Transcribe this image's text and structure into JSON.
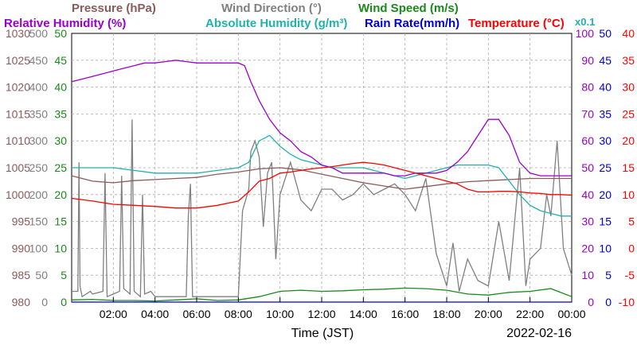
{
  "chart_data": {
    "type": "line",
    "date": "2022-02-16",
    "xlabel": "Time (JST)",
    "x_ticks": [
      "02:00",
      "04:00",
      "06:00",
      "08:00",
      "10:00",
      "12:00",
      "14:00",
      "16:00",
      "18:00",
      "20:00",
      "22:00",
      "00:00"
    ],
    "x_range_hours": [
      0,
      24
    ],
    "grid": true,
    "header_row1": [
      {
        "text": "Pressure (hPa)",
        "color": "#8b5a5a"
      },
      {
        "text": "Wind Direction (°)",
        "color": "#808080"
      },
      {
        "text": "Wind Speed (m/s)",
        "color": "#1a8a1a"
      }
    ],
    "header_row2": [
      {
        "text": "Relative Humidity (%)",
        "color": "#9900cc"
      },
      {
        "text": "Absolute Humidity (g/m³)",
        "color": "#20b2aa"
      },
      {
        "text": "Rain Rate(mm/h)",
        "color": "#0000cc"
      },
      {
        "text": "Temperature (°C)",
        "color": "#ff0000"
      }
    ],
    "scale_note": {
      "text": "x0.1",
      "color": "#20b2aa"
    },
    "axes": {
      "pressure": {
        "label": "Pressure (hPa)",
        "range": [
          980,
          1030
        ],
        "ticks": [
          "1030",
          "1025",
          "1020",
          "1015",
          "1010",
          "1005",
          "1000",
          "995",
          "990",
          "985",
          "980"
        ],
        "color": "#8b5a5a"
      },
      "wind_direction": {
        "label": "Wind Direction (°)",
        "range": [
          0,
          500
        ],
        "ticks": [
          "500",
          "450",
          "400",
          "350",
          "300",
          "250",
          "200",
          "150",
          "100",
          "50",
          "0"
        ],
        "color": "#808080"
      },
      "wind_speed": {
        "label": "Wind Speed (m/s)",
        "range": [
          0,
          50
        ],
        "ticks": [
          "50",
          "45",
          "40",
          "35",
          "30",
          "25",
          "20",
          "15",
          "10",
          "5",
          "0"
        ],
        "color": "#1a8a1a"
      },
      "humidity": {
        "label": "Relative Humidity (%)",
        "range": [
          0,
          100
        ],
        "ticks": [
          "100",
          "90",
          "80",
          "70",
          "60",
          "50",
          "40",
          "30",
          "20",
          "10",
          "0"
        ],
        "color": "#9900cc"
      },
      "rain_rate": {
        "label": "Rain Rate(mm/h)",
        "range": [
          0,
          50
        ],
        "ticks": [
          "50",
          "45",
          "40",
          "35",
          "30",
          "25",
          "20",
          "15",
          "10",
          "5",
          "0"
        ],
        "color": "#0000cc"
      },
      "temperature": {
        "label": "Temperature (°C)",
        "range": [
          -10,
          40
        ],
        "ticks": [
          "40",
          "35",
          "30",
          "25",
          "20",
          "15",
          "10",
          "5",
          "0",
          "-5",
          "-10"
        ],
        "color": "#ff0000"
      }
    },
    "series": [
      {
        "name": "Pressure (hPa)",
        "axis": "pressure",
        "color": "#8b5a5a",
        "x": [
          0,
          1,
          2,
          3,
          4,
          5,
          6,
          7,
          8,
          9,
          10,
          11,
          12,
          13,
          14,
          15,
          16,
          17,
          18,
          19,
          20,
          21,
          22,
          23,
          24
        ],
        "y": [
          1003.5,
          1002.5,
          1002.2,
          1002.6,
          1002.8,
          1003.0,
          1003.2,
          1003.8,
          1004.2,
          1004.8,
          1005.0,
          1004.6,
          1003.8,
          1003.0,
          1002.2,
          1001.6,
          1001.0,
          1001.5,
          1002.0,
          1002.4,
          1002.6,
          1002.8,
          1003.0,
          1003.0,
          1003.0
        ]
      },
      {
        "name": "Wind Direction (°)",
        "axis": "wind_direction",
        "color": "#808080",
        "x": [
          0,
          0.3,
          0.35,
          0.4,
          0.5,
          0.9,
          1.0,
          1.5,
          1.6,
          1.7,
          2.0,
          2.3,
          2.4,
          2.5,
          2.8,
          2.9,
          3.0,
          3.3,
          3.4,
          3.5,
          3.8,
          4.0,
          5.0,
          5.5,
          5.6,
          5.7,
          5.8,
          6.0,
          7.0,
          8.0,
          8.2,
          8.5,
          8.6,
          8.8,
          9.0,
          9.2,
          9.4,
          9.6,
          9.8,
          10.0,
          10.5,
          11.0,
          11.5,
          12.0,
          12.5,
          13.0,
          13.5,
          14.0,
          14.5,
          15.0,
          15.5,
          16.0,
          16.5,
          17.0,
          17.5,
          18.0,
          18.3,
          18.6,
          19.0,
          19.5,
          20.0,
          20.5,
          21.0,
          21.5,
          21.8,
          22.0,
          22.5,
          22.8,
          23.0,
          23.3,
          23.6,
          24.0
        ],
        "y": [
          20,
          20,
          260,
          30,
          10,
          20,
          15,
          20,
          240,
          10,
          15,
          20,
          235,
          25,
          15,
          340,
          20,
          10,
          200,
          15,
          20,
          10,
          10,
          10,
          160,
          220,
          10,
          10,
          10,
          10,
          170,
          210,
          280,
          300,
          270,
          140,
          240,
          260,
          80,
          200,
          260,
          190,
          170,
          210,
          210,
          190,
          200,
          220,
          200,
          210,
          220,
          200,
          170,
          230,
          90,
          30,
          110,
          20,
          80,
          40,
          30,
          150,
          40,
          250,
          30,
          80,
          100,
          200,
          160,
          300,
          100,
          50
        ]
      },
      {
        "name": "Wind Speed (m/s)",
        "axis": "wind_speed",
        "color": "#1a8a1a",
        "x": [
          0,
          1,
          2,
          3,
          4,
          5,
          6,
          7,
          8,
          9,
          10,
          11,
          12,
          13,
          14,
          15,
          16,
          17,
          18,
          19,
          20,
          21,
          22,
          23,
          24
        ],
        "y": [
          0.4,
          0.5,
          0.3,
          0.3,
          0.2,
          0.4,
          0.6,
          0.3,
          0.4,
          1.0,
          2.0,
          2.2,
          2.0,
          2.1,
          2.3,
          2.4,
          2.6,
          2.5,
          2.2,
          1.5,
          1.3,
          1.8,
          2.0,
          2.5,
          1.0
        ]
      },
      {
        "name": "Relative Humidity (%)",
        "axis": "humidity",
        "color": "#9900cc",
        "x": [
          0,
          0.5,
          1,
          1.5,
          2,
          2.5,
          3,
          3.5,
          4,
          4.5,
          5,
          5.5,
          6,
          6.5,
          7,
          7.5,
          8,
          8.3,
          8.6,
          9,
          9.5,
          10,
          10.5,
          11,
          11.5,
          12,
          12.5,
          13,
          13.5,
          14,
          14.5,
          15,
          15.5,
          16,
          16.5,
          17,
          17.5,
          18,
          18.5,
          19,
          19.5,
          20,
          20.5,
          21,
          21.5,
          22,
          22.5,
          23,
          23.5,
          24
        ],
        "y": [
          82,
          83,
          84,
          85,
          86,
          87,
          88,
          89,
          89,
          89.5,
          90,
          89.5,
          89,
          89,
          89,
          89,
          89,
          88,
          82,
          75,
          68,
          63,
          60,
          56,
          54,
          51,
          50,
          48,
          48,
          48,
          48,
          48,
          47,
          47,
          48,
          48,
          48,
          49,
          52,
          56,
          62,
          68,
          68,
          62,
          52,
          48,
          47,
          47,
          47,
          47
        ]
      },
      {
        "name": "Absolute Humidity (g/m³)",
        "axis": "humidity",
        "color": "#20b2aa",
        "x": [
          0,
          1,
          2,
          3,
          4,
          5,
          6,
          7,
          8,
          8.5,
          9,
          9.5,
          10,
          10.5,
          11,
          11.5,
          12,
          12.5,
          13,
          13.5,
          14,
          14.5,
          15,
          15.5,
          16,
          16.5,
          17,
          17.5,
          18,
          18.5,
          19,
          19.5,
          20,
          20.5,
          21,
          21.5,
          22,
          22.5,
          23,
          23.5,
          24
        ],
        "y": [
          50,
          50,
          50,
          49,
          48,
          48,
          48,
          49,
          50,
          52,
          60,
          62,
          58,
          55,
          53,
          52,
          51,
          50,
          50,
          50,
          50,
          49,
          48,
          47,
          46,
          47,
          48,
          49,
          50,
          51,
          51,
          51,
          51,
          50,
          45,
          40,
          36,
          34,
          33,
          32,
          32
        ]
      },
      {
        "name": "Rain Rate(mm/h)",
        "axis": "rain_rate",
        "color": "#0000cc",
        "x": [
          0,
          4,
          8,
          12,
          16,
          20,
          24
        ],
        "y": [
          0,
          0,
          0,
          0,
          0,
          0,
          0
        ]
      },
      {
        "name": "Temperature (°C)",
        "axis": "temperature",
        "color": "#ff0000",
        "x": [
          0,
          1,
          2,
          3,
          4,
          5,
          6,
          7,
          8,
          8.5,
          9,
          9.5,
          10,
          10.5,
          11,
          11.5,
          12,
          12.5,
          13,
          13.5,
          14,
          14.5,
          15,
          15.5,
          16,
          16.5,
          17,
          17.5,
          18,
          18.5,
          19,
          19.5,
          20,
          20.5,
          21,
          21.5,
          22,
          22.5,
          23,
          23.5,
          24
        ],
        "y": [
          9.3,
          8.8,
          8.2,
          8.0,
          7.8,
          7.5,
          7.5,
          8.0,
          8.8,
          10.5,
          12.5,
          13.0,
          14.0,
          14.2,
          14.5,
          14.8,
          15.0,
          15.2,
          15.5,
          15.8,
          16.0,
          15.8,
          15.5,
          15.0,
          14.5,
          14.0,
          13.5,
          13.0,
          12.5,
          12.0,
          11.0,
          10.5,
          10.5,
          10.6,
          10.6,
          10.5,
          10.3,
          10.2,
          10.0,
          10.0,
          9.9
        ]
      }
    ]
  }
}
